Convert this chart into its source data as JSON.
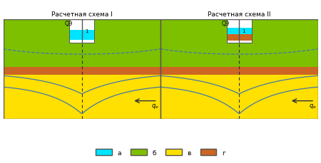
{
  "title1": "Расчетная схема I",
  "title2": "Расчетная схема II",
  "color_cyan": "#00e5ff",
  "color_green": "#7dc000",
  "color_yellow": "#ffe000",
  "color_orange": "#cc6622",
  "color_border": "#888888",
  "color_line_solid": "#4477aa",
  "color_line_dashed": "#4477aa",
  "legend_labels": [
    "а",
    "б",
    "в",
    "г"
  ],
  "label_qe": "$q_e$",
  "label_qэ": "QЭ",
  "background": "#ffffff"
}
